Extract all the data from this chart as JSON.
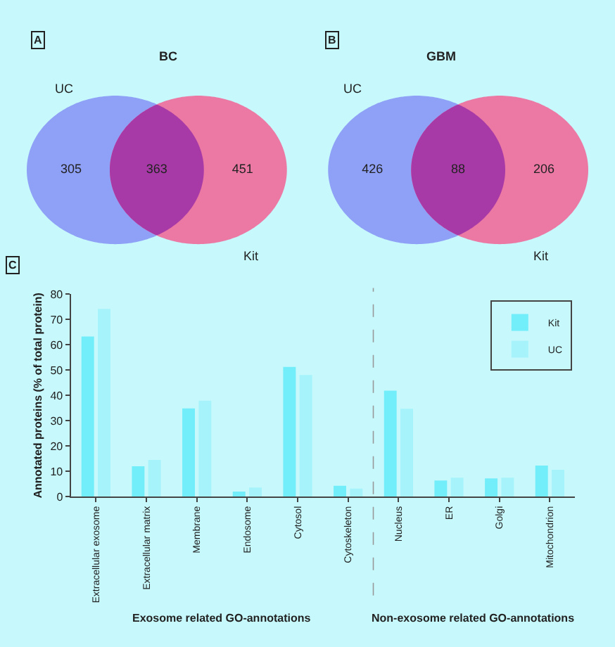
{
  "chart_data": [
    {
      "type": "other",
      "title": "BC",
      "annotations": [
        "A",
        "UC",
        "Kit"
      ],
      "categories": [
        null,
        null,
        null
      ],
      "values": [
        305,
        363,
        451
      ],
      "colors": [
        "#8fa0f7",
        "#a73aa6",
        "#ec78a4"
      ],
      "data_labels": true
    },
    {
      "type": "other",
      "title": "GBM",
      "annotations": [
        "B",
        "UC",
        "Kit"
      ],
      "categories": [
        null,
        null,
        null
      ],
      "values": [
        426,
        88,
        206
      ],
      "colors": [
        "#8fa0f7",
        "#a73aa6",
        "#ec78a4"
      ],
      "data_labels": true
    },
    {
      "type": "bar",
      "ylabel": "Annotated proteins (% of total protein)",
      "annotations": [
        "C",
        "Exosome related GO-annotations",
        "Non-exosome related GO-annotations"
      ],
      "categories": [
        "Extracellular exosome",
        "Extracellular matrix",
        "Membrane",
        "Endosome",
        "Cytosol",
        "Cytoskeleton",
        "Nucleus",
        "ER",
        "Golgi",
        "Mitochondrion"
      ],
      "series": [
        {
          "name": "Kit",
          "color": "#72eefa",
          "values": [
            63.3,
            12,
            34.9,
            2,
            51.3,
            4.3,
            41.9,
            6.4,
            7.2,
            12.3
          ]
        },
        {
          "name": "UC",
          "color": "#a6f3fb",
          "values": [
            74.2,
            14.5,
            37.9,
            3.6,
            48.1,
            3.2,
            34.7,
            7.5,
            7.5,
            10.6
          ]
        }
      ],
      "ylim": [
        0,
        80
      ],
      "yticks": [
        0,
        10,
        20,
        30,
        40,
        50,
        60,
        70,
        80
      ],
      "legend": "top right",
      "grid": false
    }
  ]
}
